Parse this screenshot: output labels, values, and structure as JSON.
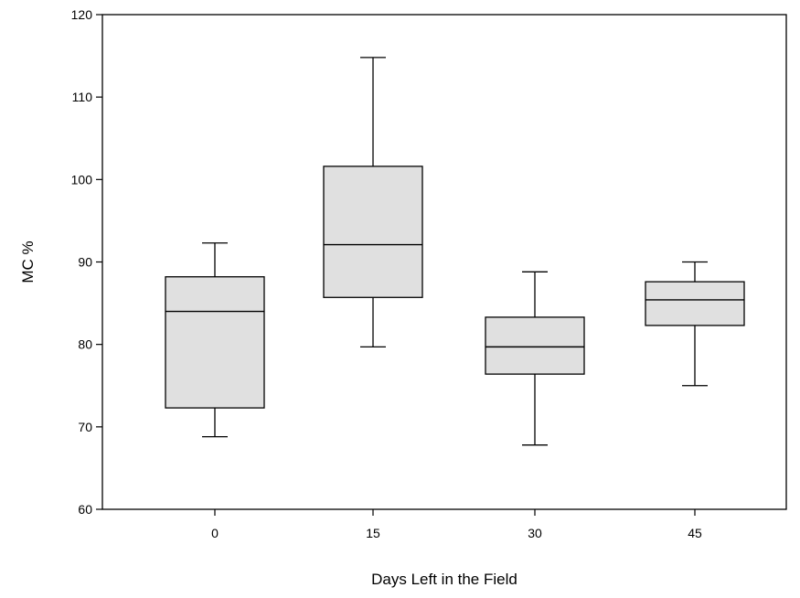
{
  "chart_data": {
    "type": "box",
    "title": "",
    "xlabel": "Days Left in the Field",
    "ylabel": "MC %",
    "ylim": [
      60,
      120
    ],
    "yticks": [
      60,
      70,
      80,
      90,
      100,
      110,
      120
    ],
    "categories": [
      "0",
      "15",
      "30",
      "45"
    ],
    "boxes": [
      {
        "category": "0",
        "whisker_low": 68.8,
        "q1": 72.3,
        "median": 84.0,
        "q3": 88.2,
        "whisker_high": 92.3
      },
      {
        "category": "15",
        "whisker_low": 79.7,
        "q1": 85.7,
        "median": 92.1,
        "q3": 101.6,
        "whisker_high": 114.8
      },
      {
        "category": "30",
        "whisker_low": 67.8,
        "q1": 76.4,
        "median": 79.7,
        "q3": 83.3,
        "whisker_high": 88.8
      },
      {
        "category": "45",
        "whisker_low": 75.0,
        "q1": 82.3,
        "median": 85.4,
        "q3": 87.6,
        "whisker_high": 90.0
      }
    ],
    "box_fill": "#e0e0e0",
    "line_color": "#000000",
    "grid": false,
    "legend": "none"
  }
}
